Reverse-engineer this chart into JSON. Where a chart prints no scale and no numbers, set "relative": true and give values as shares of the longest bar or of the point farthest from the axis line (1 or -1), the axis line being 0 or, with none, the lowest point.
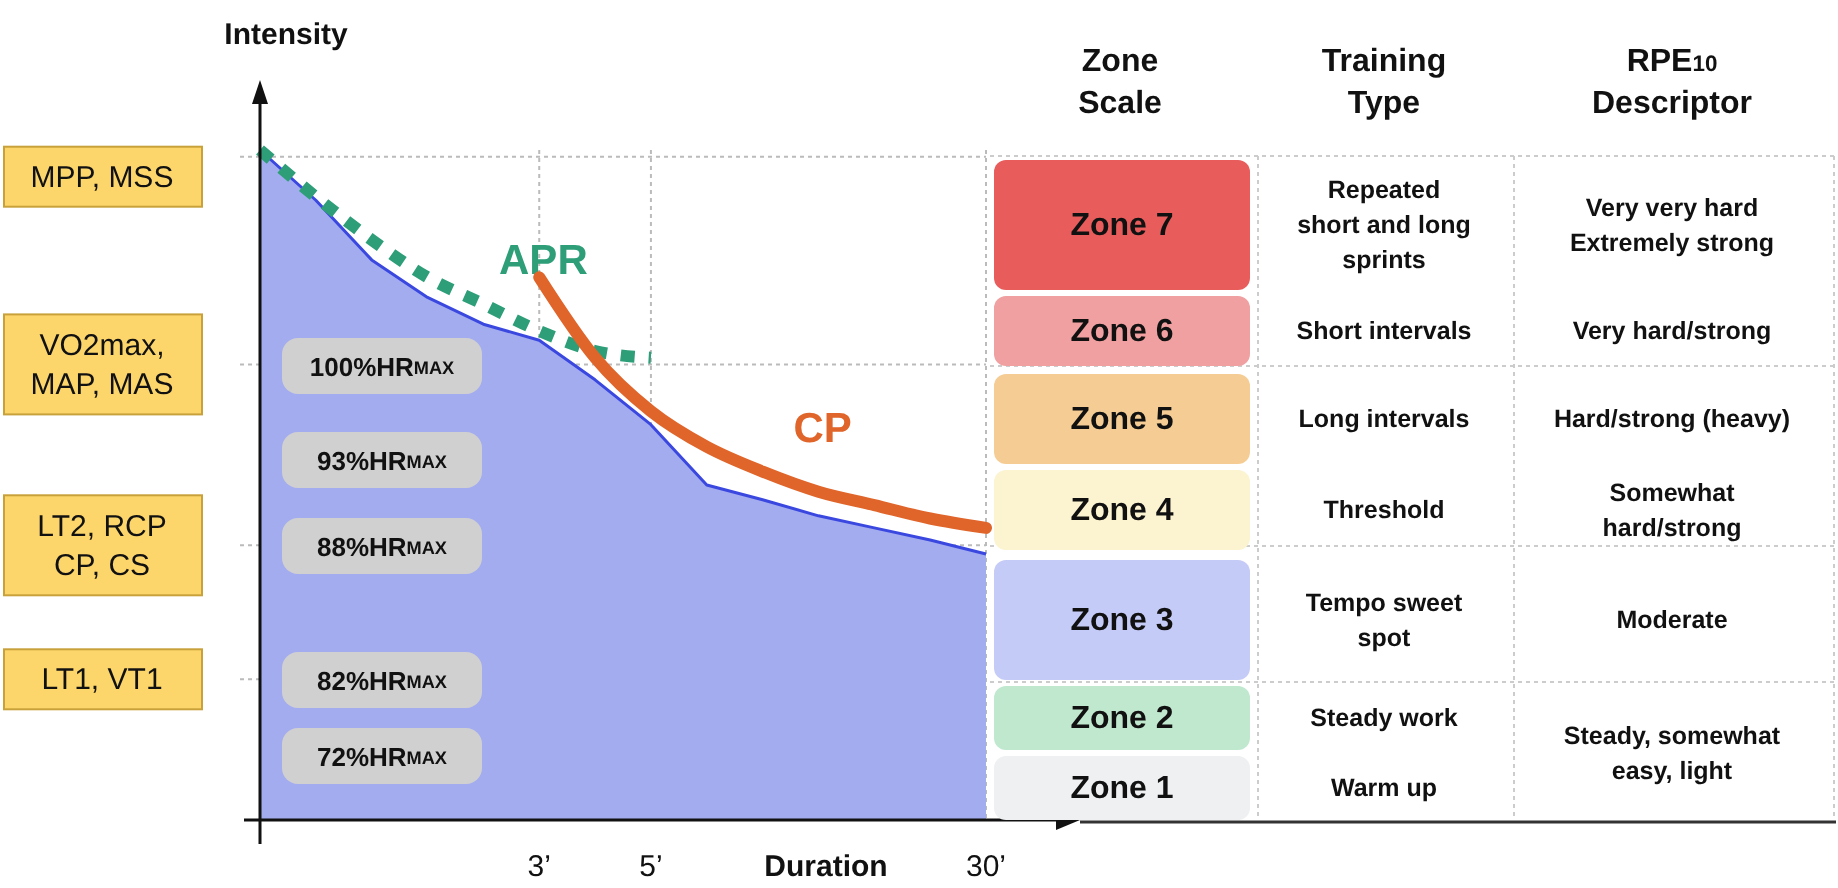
{
  "chart_data": [
    {
      "type": "area",
      "relative": true,
      "xlabel": "Duration",
      "ylabel": "Intensity",
      "categories": [
        null,
        null,
        null,
        null,
        null,
        "3’",
        null,
        "5’",
        null,
        null,
        null,
        null,
        null,
        "30’"
      ],
      "series": [
        {
          "type": "area",
          "color": "#a3acef",
          "values": [
            1.0,
            0.925,
            0.836,
            0.78,
            0.74,
            0.716,
            0.657,
            0.59,
            0.5,
            0.478,
            0.454,
            0.436,
            0.418,
            0.397
          ]
        },
        {
          "type": "line",
          "name": "APR",
          "color": "#2e9e78",
          "line_style": "dotted",
          "values": [
            1.0,
            0.93,
            0.866,
            0.81,
            0.77,
            0.73,
            0.7,
            0.69,
            null,
            null,
            null,
            null,
            null,
            null
          ]
        },
        {
          "type": "line",
          "name": "CP",
          "color": "#e0652a",
          "line_style": "solid",
          "values": [
            null,
            null,
            null,
            null,
            null,
            0.81,
            0.69,
            0.61,
            0.557,
            0.52,
            0.49,
            0.47,
            0.45,
            0.436
          ]
        }
      ],
      "ref_lines": [
        {
          "axis": "y",
          "value": 0.99,
          "label": "MPP, MSS"
        },
        {
          "axis": "y",
          "value": 0.68,
          "label": "VO2max,\nMAP, MAS"
        },
        {
          "axis": "y",
          "value": 0.41,
          "label": "LT2, RCP\nCP, CS"
        },
        {
          "axis": "y",
          "value": 0.21,
          "label": "LT1, VT1"
        }
      ],
      "annotations": [
        "100%HR$_{MAX}$",
        "93%HR$_{MAX}$",
        "88%HR$_{MAX}$",
        "82%HR$_{MAX}$",
        "72%HR$_{MAX}$"
      ],
      "grid": "x"
    },
    {
      "type": "other",
      "categories": [
        "Zone\nScale",
        "Training\nType",
        "RPE$_{10}$\nDescriptor"
      ],
      "y_categories": [
        "Zone 7",
        "Zone 6",
        "Zone 5",
        "Zone 4",
        "Zone 3",
        "Zone 2",
        "Zone 1"
      ],
      "colors": [
        "#e85c5c",
        "#f0a0a0",
        "#f5cd94",
        "#fcf3d0",
        "#c5cbf7",
        "#bfe8cf",
        "#eef0f2"
      ],
      "cell_labels": [
        [
          "Repeated\nshort and long\nsprints",
          "Very very hard\nExtremely strong"
        ],
        [
          "Short intervals",
          "Very hard/strong"
        ],
        [
          "Long intervals",
          "Hard/strong (heavy)"
        ],
        [
          "Threshold",
          "Somewhat\nhard/strong"
        ],
        [
          "Tempo sweet\nspot",
          "Moderate"
        ],
        [
          "Steady work",
          "Steady, somewhat\neasy, light"
        ],
        [
          "Warm up",
          null
        ]
      ]
    }
  ]
}
